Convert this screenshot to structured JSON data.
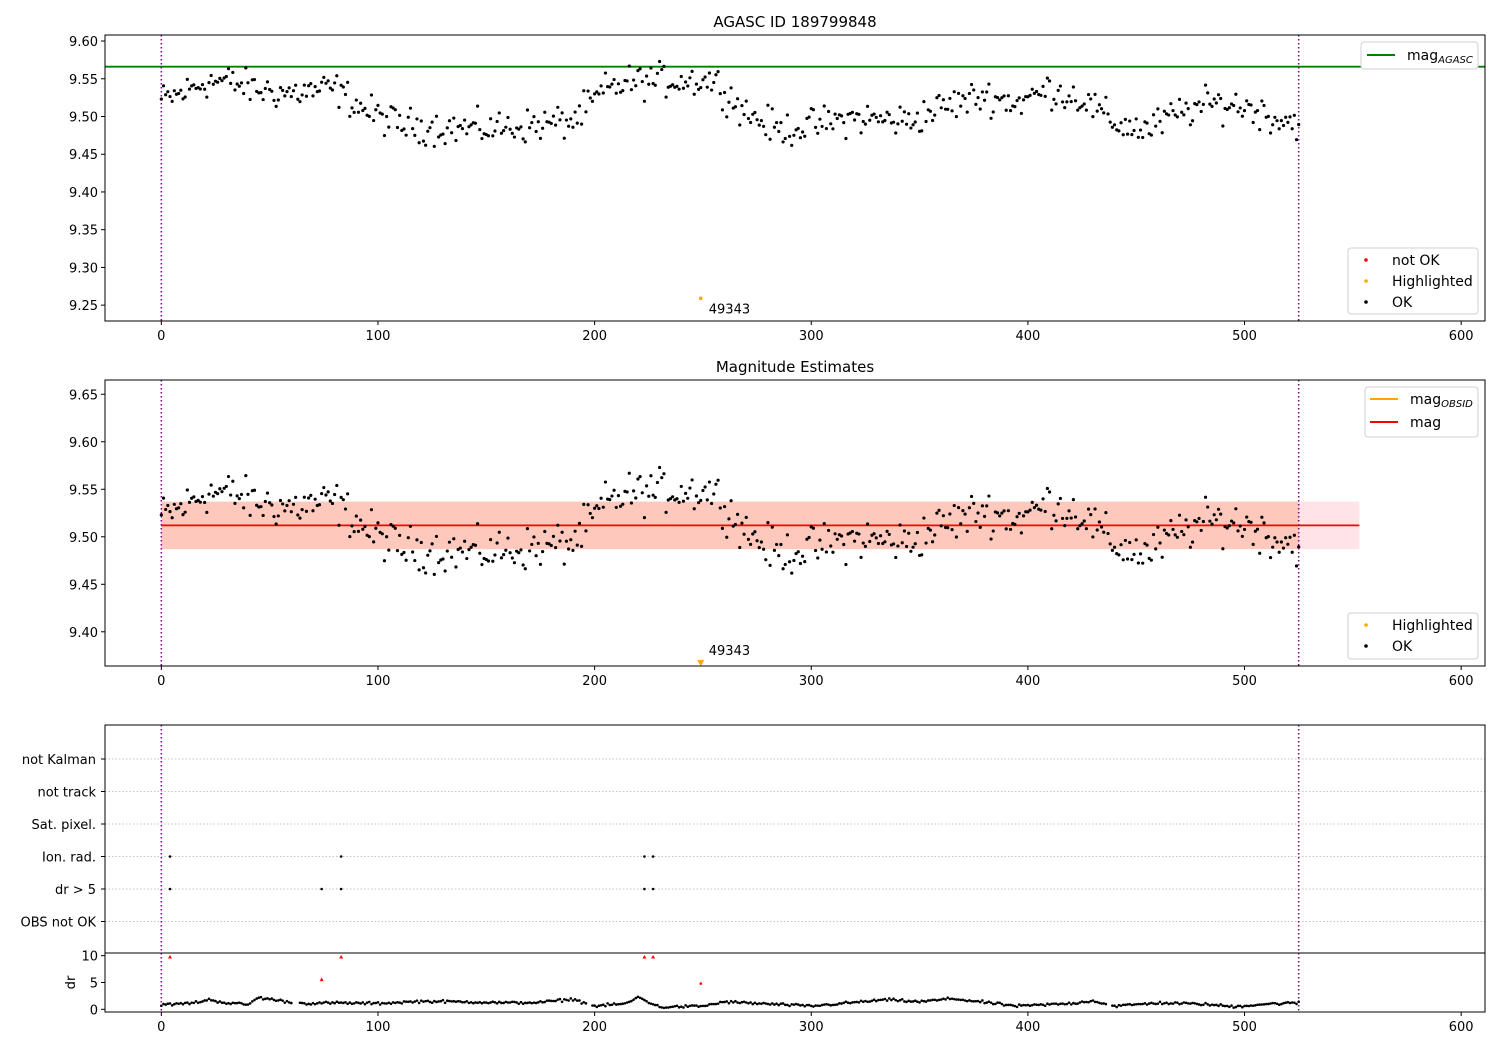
{
  "figure": {
    "colors": {
      "ok": "#000000",
      "not_ok": "#ff0000",
      "highlighted": "#ffa500",
      "mag_agasc": "#008000",
      "mag": "#ff0000",
      "mag_obsid": "#ffa500",
      "obs_boundary": "#800080",
      "band_outer": "#ffc0cb",
      "band_inner": "#ffa07a",
      "grid": "#b0b0b0"
    }
  },
  "chart_data": [
    {
      "type": "scatter",
      "title": "AGASC ID 189799848",
      "xlim": [
        -26,
        611
      ],
      "ylim": [
        9.229,
        9.608
      ],
      "xticks": [
        "0",
        "100",
        "200",
        "300",
        "400",
        "500",
        "600"
      ],
      "yticks": [
        "9.25",
        "9.30",
        "9.35",
        "9.40",
        "9.45",
        "9.50",
        "9.55",
        "9.60"
      ],
      "obs_boundaries": [
        0,
        525
      ],
      "mag_agasc": 9.566,
      "legend_lines": [
        {
          "label": "mag",
          "subscript": "AGASC"
        }
      ],
      "legend_points": [
        "not OK",
        "Highlighted",
        "OK"
      ],
      "highlighted_point": {
        "x": 249,
        "y": 9.259,
        "label": "49343"
      },
      "ok_series": {
        "name": "OK",
        "x_range": [
          0,
          525
        ],
        "y_curve": [
          [
            0,
            9.521
          ],
          [
            10,
            9.531
          ],
          [
            20,
            9.546
          ],
          [
            30,
            9.547
          ],
          [
            45,
            9.535
          ],
          [
            60,
            9.531
          ],
          [
            80,
            9.537
          ],
          [
            95,
            9.507
          ],
          [
            110,
            9.489
          ],
          [
            130,
            9.485
          ],
          [
            150,
            9.484
          ],
          [
            170,
            9.488
          ],
          [
            190,
            9.494
          ],
          [
            205,
            9.535
          ],
          [
            215,
            9.545
          ],
          [
            230,
            9.548
          ],
          [
            255,
            9.548
          ],
          [
            270,
            9.505
          ],
          [
            285,
            9.482
          ],
          [
            300,
            9.488
          ],
          [
            320,
            9.498
          ],
          [
            345,
            9.494
          ],
          [
            360,
            9.512
          ],
          [
            380,
            9.528
          ],
          [
            395,
            9.518
          ],
          [
            410,
            9.536
          ],
          [
            425,
            9.523
          ],
          [
            440,
            9.491
          ],
          [
            455,
            9.482
          ],
          [
            470,
            9.505
          ],
          [
            485,
            9.517
          ],
          [
            500,
            9.514
          ],
          [
            515,
            9.497
          ],
          [
            525,
            9.492
          ]
        ],
        "scatter": 0.011
      }
    },
    {
      "type": "scatter",
      "title": "Magnitude Estimates",
      "xlim": [
        -26,
        611
      ],
      "ylim": [
        9.364,
        9.665
      ],
      "xticks": [
        "0",
        "100",
        "200",
        "300",
        "400",
        "500",
        "600"
      ],
      "yticks": [
        "9.40",
        "9.45",
        "9.50",
        "9.55",
        "9.60",
        "9.65"
      ],
      "obs_boundaries": [
        0,
        525
      ],
      "mag": 9.512,
      "mag_band": [
        9.487,
        9.537
      ],
      "band_x": [
        0,
        553
      ],
      "legend_lines": [
        {
          "label": "mag",
          "subscript": "OBSID"
        },
        {
          "label": "mag",
          "subscript": ""
        }
      ],
      "legend_points": [
        "Highlighted",
        "OK"
      ],
      "highlighted_point": {
        "x": 249,
        "y": 9.367,
        "label": "49343",
        "marker": "triangle-down"
      },
      "ok_series": {
        "name": "OK",
        "same_as_panel": 0
      }
    },
    {
      "type": "scatter",
      "title": "",
      "xlim": [
        -26,
        611
      ],
      "xticks": [
        "0",
        "100",
        "200",
        "300",
        "400",
        "500",
        "600"
      ],
      "obs_boundaries": [
        0,
        525
      ],
      "flag_categories": [
        "not Kalman",
        "not track",
        "Sat. pixel.",
        "Ion. rad.",
        "dr > 5",
        "OBS not OK"
      ],
      "flag_points": [
        {
          "category": "Ion. rad.",
          "x": [
            4,
            83,
            223,
            227
          ]
        },
        {
          "category": "dr > 5",
          "x": [
            4,
            74,
            83,
            223,
            227
          ]
        }
      ]
    },
    {
      "type": "scatter",
      "title": "",
      "xlim": [
        -26,
        611
      ],
      "ylim": [
        -0.5,
        10.5
      ],
      "ylabel": "dr",
      "yticks": [
        "0",
        "5",
        "10"
      ],
      "xticks": [
        "0",
        "100",
        "200",
        "300",
        "400",
        "500",
        "600"
      ],
      "obs_boundaries": [
        0,
        525
      ],
      "dr_curve": [
        [
          0,
          0.8
        ],
        [
          15,
          1.2
        ],
        [
          22,
          1.8
        ],
        [
          30,
          1.2
        ],
        [
          40,
          0.9
        ],
        [
          45,
          2.2
        ],
        [
          55,
          1.6
        ],
        [
          65,
          1.1
        ],
        [
          80,
          1.2
        ],
        [
          100,
          1.1
        ],
        [
          120,
          1.5
        ],
        [
          140,
          1.4
        ],
        [
          160,
          1.2
        ],
        [
          175,
          1.3
        ],
        [
          190,
          1.9
        ],
        [
          200,
          0.6
        ],
        [
          215,
          1.1
        ],
        [
          220,
          2.3
        ],
        [
          230,
          0.4
        ],
        [
          250,
          0.6
        ],
        [
          260,
          1.4
        ],
        [
          270,
          1.2
        ],
        [
          290,
          0.8
        ],
        [
          300,
          0.6
        ],
        [
          320,
          1.3
        ],
        [
          335,
          1.8
        ],
        [
          350,
          1.4
        ],
        [
          365,
          2.0
        ],
        [
          380,
          1.3
        ],
        [
          395,
          0.6
        ],
        [
          420,
          1.1
        ],
        [
          430,
          1.6
        ],
        [
          440,
          0.6
        ],
        [
          460,
          1.2
        ],
        [
          480,
          1.0
        ],
        [
          495,
          0.5
        ],
        [
          510,
          1.0
        ],
        [
          525,
          1.2
        ]
      ],
      "dr_not_ok": [
        {
          "x": 4,
          "y": 9.8
        },
        {
          "x": 83,
          "y": 9.8
        },
        {
          "x": 223,
          "y": 9.8
        },
        {
          "x": 227,
          "y": 9.8
        },
        {
          "x": 74,
          "y": 5.6
        }
      ],
      "dr_highlighted": {
        "x": 249,
        "y": 4.8
      }
    }
  ]
}
